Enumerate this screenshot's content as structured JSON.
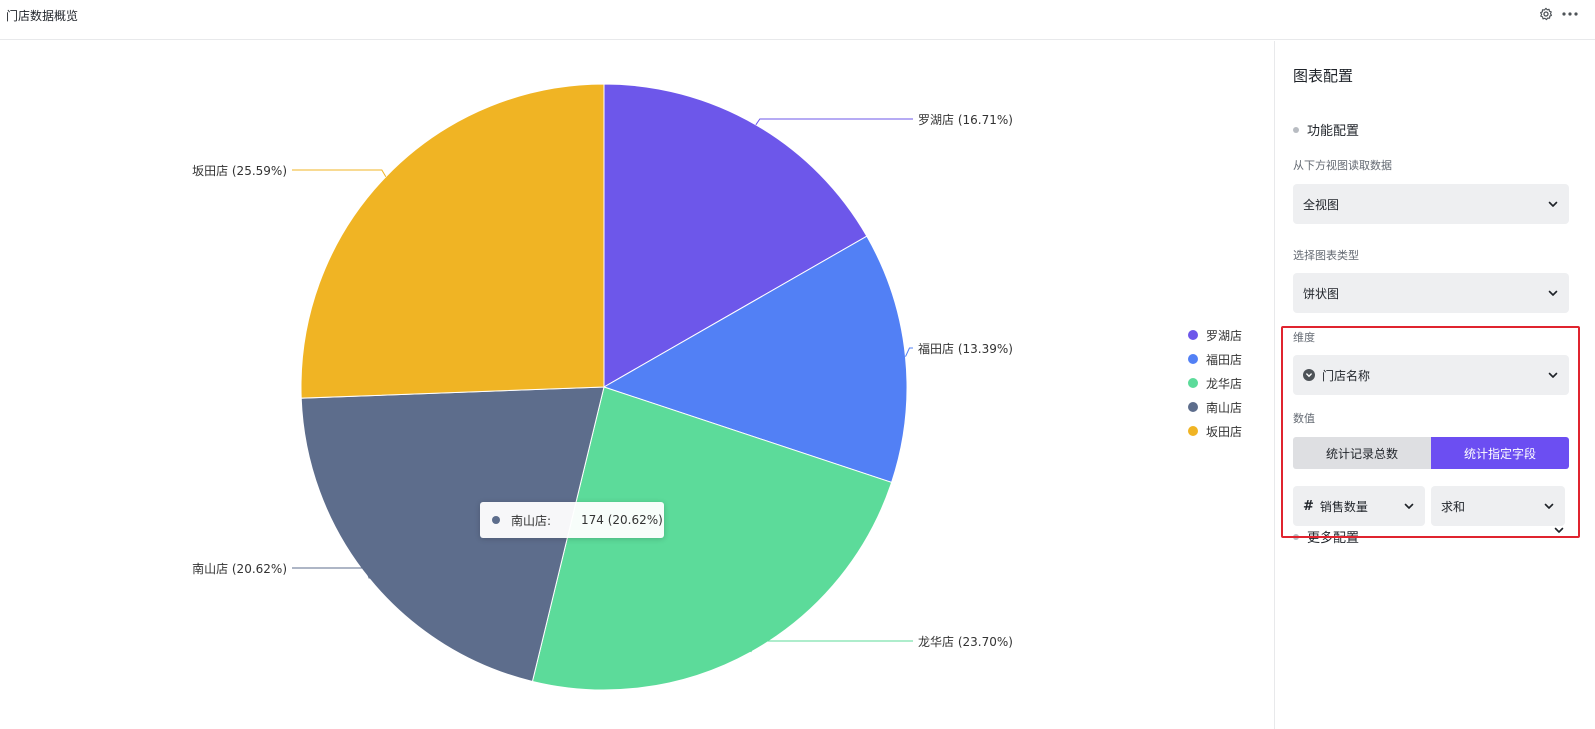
{
  "header": {
    "title": "门店数据概览",
    "icons": [
      "gear-icon",
      "more-icon"
    ]
  },
  "chart_data": {
    "type": "pie",
    "categories": [
      "罗湖店",
      "福田店",
      "龙华店",
      "南山店",
      "坂田店"
    ],
    "values": [
      16.71,
      13.39,
      23.7,
      20.62,
      25.59
    ],
    "labels": [
      "罗湖店 (16.71%)",
      "福田店 (13.39%)",
      "龙华店 (23.70%)",
      "南山店 (20.62%)",
      "坂田店 (25.59%)"
    ],
    "colors": [
      "#6d57ea",
      "#5280f5",
      "#5cdb9a",
      "#5d6d8c",
      "#f0b424"
    ],
    "legend_position": "right"
  },
  "tooltip": {
    "name": "南山店:",
    "value": "174 (20.62%)",
    "color": "#5d6d8c"
  },
  "panel": {
    "title": "图表配置",
    "function_section": "功能配置",
    "view_label": "从下方视图读取数据",
    "view_value": "全视图",
    "type_label": "选择图表类型",
    "type_value": "饼状图",
    "dimension_label": "维度",
    "dimension_value": "门店名称",
    "value_label": "数值",
    "count_records": "统计记录总数",
    "count_field": "统计指定字段",
    "field_value": "销售数量",
    "agg_value": "求和",
    "more_section": "更多配置"
  },
  "colors": {
    "accent": "#6c4ef2",
    "highlight": "#e0242f"
  }
}
